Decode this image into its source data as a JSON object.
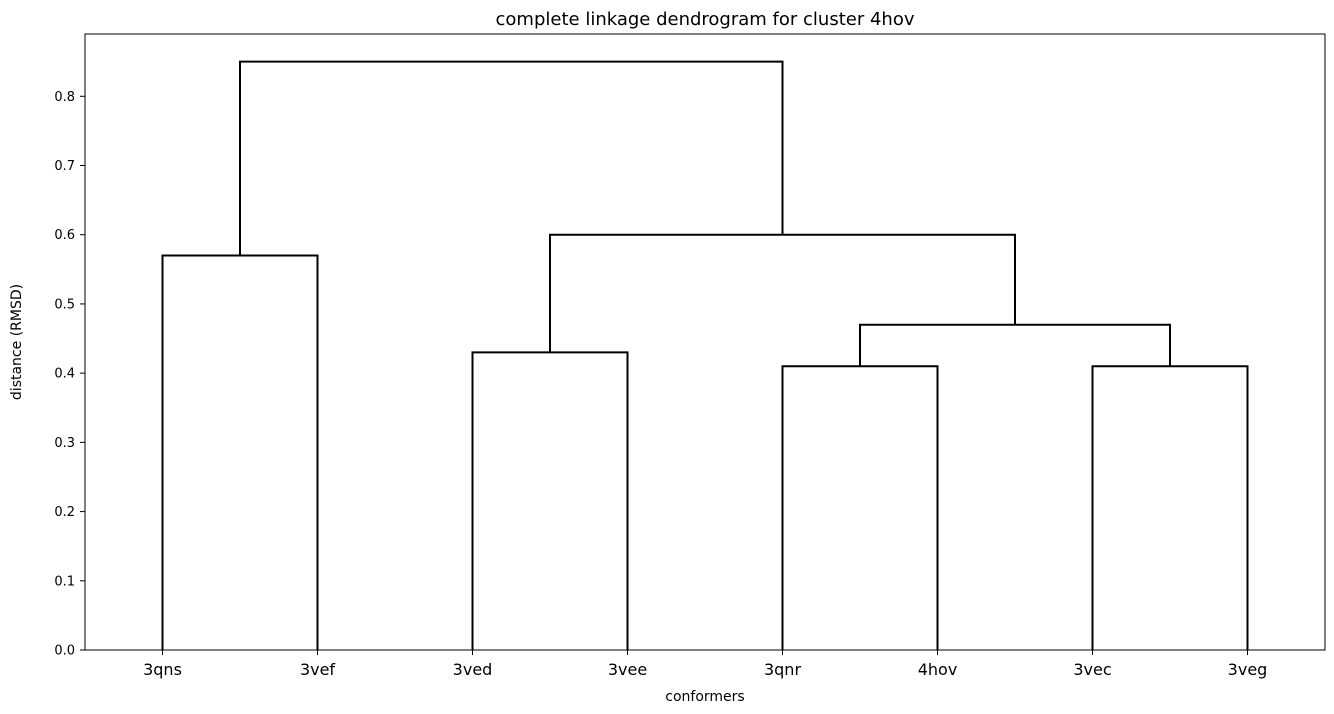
{
  "chart_data": {
    "type": "dendrogram",
    "title": "complete linkage dendrogram for cluster 4hov",
    "xlabel": "conformers",
    "ylabel": "distance (RMSD)",
    "ylim": [
      0,
      0.89
    ],
    "yticks": [
      "0.0",
      "0.1",
      "0.2",
      "0.3",
      "0.4",
      "0.5",
      "0.6",
      "0.7",
      "0.8"
    ],
    "leaves": [
      "3qns",
      "3vef",
      "3ved",
      "3vee",
      "3qnr",
      "4hov",
      "3vec",
      "3veg"
    ],
    "merges": [
      {
        "left": "leaf:0",
        "right": "leaf:1",
        "height": 0.57
      },
      {
        "left": "leaf:2",
        "right": "leaf:3",
        "height": 0.43
      },
      {
        "left": "leaf:4",
        "right": "leaf:5",
        "height": 0.41
      },
      {
        "left": "leaf:6",
        "right": "leaf:7",
        "height": 0.41
      },
      {
        "left": "node:2",
        "right": "node:3",
        "height": 0.47
      },
      {
        "left": "node:1",
        "right": "node:4",
        "height": 0.6
      },
      {
        "left": "node:0",
        "right": "node:5",
        "height": 0.85
      }
    ],
    "grid": false,
    "line_color": "#000000"
  }
}
